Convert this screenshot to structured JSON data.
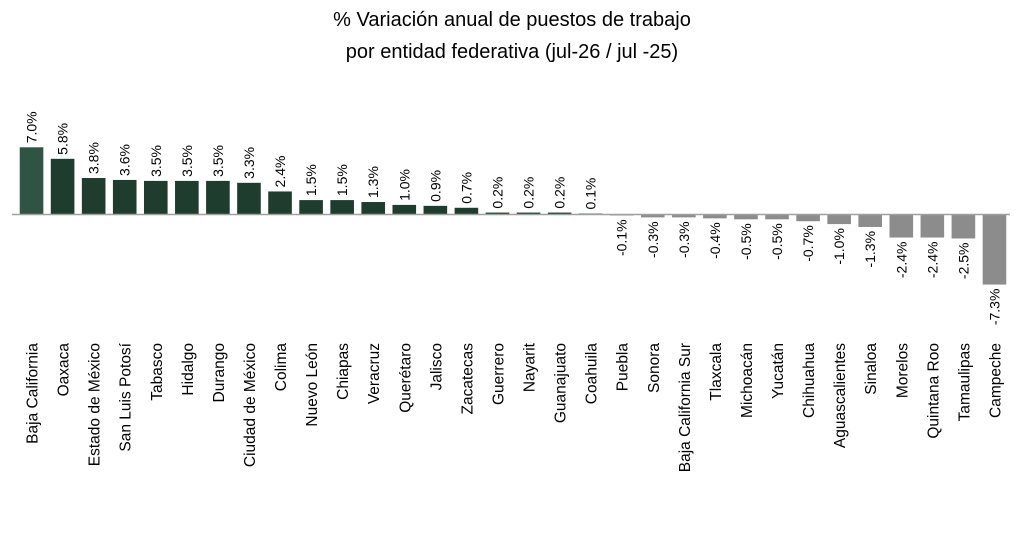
{
  "chart_data": {
    "type": "bar",
    "title_lines": [
      "% Variación anual de puestos de trabajo",
      "por entidad federativa (jul-26 / jul -25)"
    ],
    "xlabel": "",
    "ylabel": "",
    "ylim": [
      -7.3,
      7.0
    ],
    "grid": false,
    "legend": "none",
    "categories": [
      "Baja California",
      "Oaxaca",
      "Estado de México",
      "San Luis Potosí",
      "Tabasco",
      "Hidalgo",
      "Durango",
      "Ciudad de México",
      "Colima",
      "Nuevo León",
      "Chiapas",
      "Veracruz",
      "Querétaro",
      "Jalisco",
      "Zacatecas",
      "Guerrero",
      "Nayarit",
      "Guanajuato",
      "Coahuila",
      "Puebla",
      "Sonora",
      "Baja California Sur",
      "Tlaxcala",
      "Michoacán",
      "Yucatán",
      "Chihuahua",
      "Aguascalientes",
      "Sinaloa",
      "Morelos",
      "Quintana Roo",
      "Tamaulipas",
      "Campeche"
    ],
    "values": [
      7.0,
      5.8,
      3.8,
      3.6,
      3.5,
      3.5,
      3.5,
      3.3,
      2.4,
      1.5,
      1.5,
      1.3,
      1.0,
      0.9,
      0.7,
      0.2,
      0.2,
      0.2,
      0.1,
      -0.1,
      -0.3,
      -0.3,
      -0.4,
      -0.5,
      -0.5,
      -0.7,
      -1.0,
      -1.3,
      -2.4,
      -2.4,
      -2.5,
      -7.3
    ],
    "value_labels": [
      "7.0%",
      "5.8%",
      "3.8%",
      "3.6%",
      "3.5%",
      "3.5%",
      "3.5%",
      "3.3%",
      "2.4%",
      "1.5%",
      "1.5%",
      "1.3%",
      "1.0%",
      "0.9%",
      "0.7%",
      "0.2%",
      "0.2%",
      "0.2%",
      "0.1%",
      "-0.1%",
      "-0.3%",
      "-0.3%",
      "-0.4%",
      "-0.5%",
      "-0.5%",
      "-0.7%",
      "-1.0%",
      "-1.3%",
      "-2.4%",
      "-2.4%",
      "-2.5%",
      "-7.3%"
    ],
    "colors": {
      "positive": "#1f3d2e",
      "highlight": "#2f5446",
      "negative": "#8c8c8c",
      "baseline": "#a0a0a0"
    }
  }
}
